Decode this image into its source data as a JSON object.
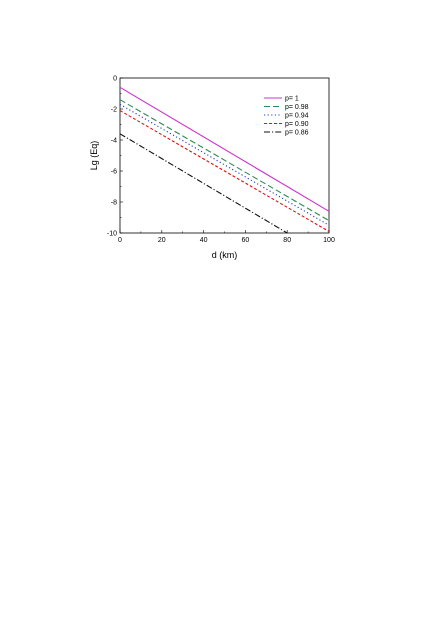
{
  "chart_data": {
    "type": "line",
    "xlabel": "d (km)",
    "ylabel": "Lg (Eq)",
    "xlim": [
      0,
      100
    ],
    "ylim": [
      -10,
      0
    ],
    "x_ticks": [
      "0",
      "20",
      "40",
      "60",
      "80",
      "100"
    ],
    "y_ticks": [
      "0",
      "-2",
      "-4",
      "-6",
      "-8",
      "-10"
    ],
    "grid": false,
    "legend_position": "top-right",
    "series": [
      {
        "name": "p= 1",
        "color": "#cc33cc",
        "dash": "solid",
        "x": [
          0,
          100
        ],
        "y": [
          -0.6,
          -8.6
        ]
      },
      {
        "name": "p= 0.98",
        "color": "#2e8b57",
        "dash": "dashed",
        "x": [
          0,
          100
        ],
        "y": [
          -1.4,
          -9.2
        ]
      },
      {
        "name": "p= 0.94",
        "color": "#1f3fbf",
        "dash": "dotted",
        "x": [
          0,
          100
        ],
        "y": [
          -1.7,
          -9.5
        ]
      },
      {
        "name": "p= 0.90",
        "color": "#dd1111",
        "dash": "short-dash",
        "x": [
          0,
          100
        ],
        "y": [
          -2.1,
          -9.9
        ]
      },
      {
        "name": "p= 0.86",
        "color": "#111111",
        "dash": "dash-dot",
        "x": [
          0,
          80
        ],
        "y": [
          -3.6,
          -10.0
        ]
      }
    ]
  }
}
